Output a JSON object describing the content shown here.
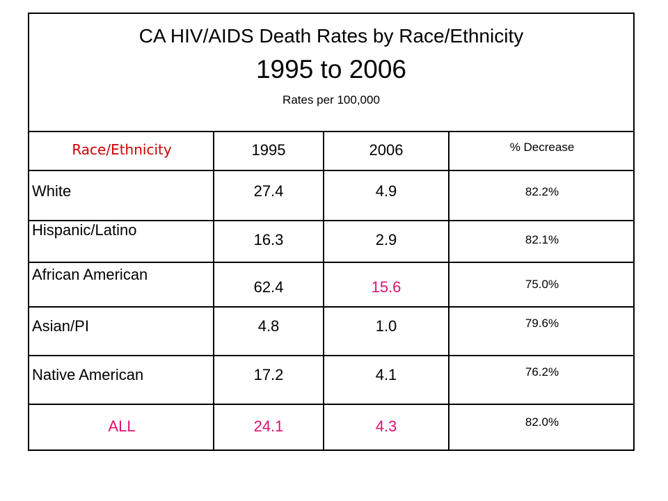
{
  "title": {
    "line1": "CA HIV/AIDS Death Rates by Race/Ethnicity",
    "line2": "1995 to 2006",
    "subtitle": "Rates per 100,000"
  },
  "table": {
    "headers": {
      "race": "Race/Ethnicity",
      "y1995": "1995",
      "y2006": "2006",
      "pct": "% Decrease"
    },
    "rows": [
      {
        "race": "White",
        "y1995": "27.4",
        "y2006": "4.9",
        "pct": "82.2%"
      },
      {
        "race": "Hispanic/Latino",
        "y1995": "16.3",
        "y2006": "2.9",
        "pct": "82.1%"
      },
      {
        "race": "African American",
        "y1995": "62.4",
        "y2006": "15.6",
        "pct": "75.0%"
      },
      {
        "race": "Asian/PI",
        "y1995": "4.8",
        "y2006": "1.0",
        "pct": "79.6%"
      },
      {
        "race": "Native American",
        "y1995": "17.2",
        "y2006": "4.1",
        "pct": "76.2%"
      },
      {
        "race": "ALL",
        "y1995": "24.1",
        "y2006": "4.3",
        "pct": "82.0%"
      }
    ]
  },
  "colors": {
    "header_race": "#cc0000",
    "highlight": "#e0106e",
    "border": "#000000"
  }
}
